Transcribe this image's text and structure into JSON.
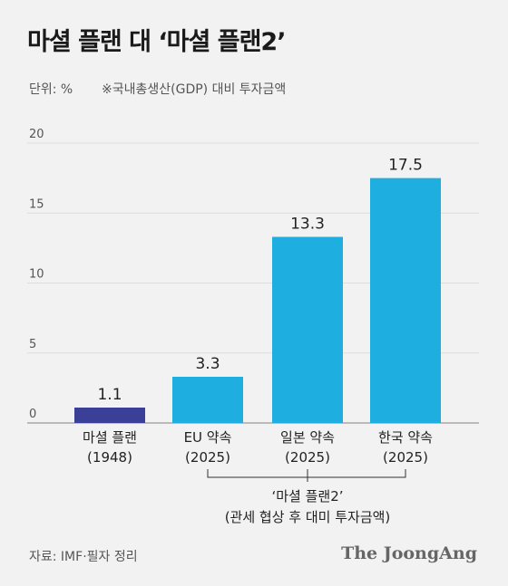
{
  "title": "마셜 플랜 대 ‘마셜 플랜2’",
  "unit_label": "단위: %",
  "note": "※국내총생산(GDP) 대비 투자금액",
  "source": "자료: IMF·필자 정리",
  "logo": "The JoongAng",
  "bracket": {
    "line1": "‘마셜 플랜2’",
    "line2": "(관세 협상 후 대미 투자금액)"
  },
  "colors": {
    "marshall": "#3a3f98",
    "others": "#1eaee0",
    "axis": "#999999",
    "grid": "#dddddd"
  },
  "chart_data": {
    "type": "bar",
    "title": "마셜 플랜 대 ‘마셜 플랜2’",
    "categories": [
      [
        "마셜 플랜",
        "(1948)"
      ],
      [
        "EU 약속",
        "(2025)"
      ],
      [
        "일본 약속",
        "(2025)"
      ],
      [
        "한국 약속",
        "(2025)"
      ]
    ],
    "values": [
      1.1,
      3.3,
      13.3,
      17.5
    ],
    "value_labels": [
      "1.1",
      "3.3",
      "13.3",
      "17.5"
    ],
    "ylim": [
      0,
      20
    ],
    "yticks": [
      "0",
      "5",
      "10",
      "15",
      "20"
    ],
    "ylabel": "",
    "xlabel": "",
    "grid": true
  }
}
